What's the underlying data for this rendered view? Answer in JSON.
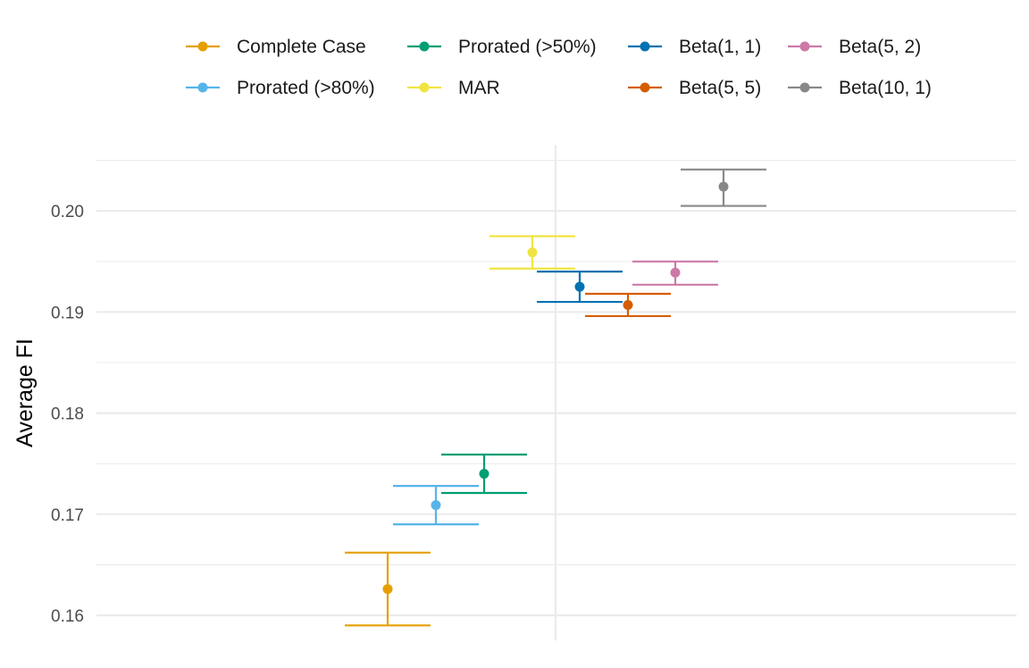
{
  "chart_data": {
    "type": "scatter",
    "title": "",
    "xlabel": "",
    "ylabel": "Average FI",
    "ylim": [
      0.1575,
      0.2065
    ],
    "y_ticks": [
      0.16,
      0.17,
      0.18,
      0.19,
      0.2
    ],
    "y_tick_labels": [
      "0.16",
      "0.17",
      "0.18",
      "0.19",
      "0.20"
    ],
    "grid": true,
    "legend_position": "top",
    "series": [
      {
        "name": "Complete Case",
        "color": "#E69F00",
        "estimate": 0.1626,
        "lower": 0.159,
        "upper": 0.1662
      },
      {
        "name": "Prorated (>80%)",
        "color": "#56B4E9",
        "estimate": 0.1709,
        "lower": 0.169,
        "upper": 0.1728
      },
      {
        "name": "Prorated (>50%)",
        "color": "#009E73",
        "estimate": 0.174,
        "lower": 0.1721,
        "upper": 0.1759
      },
      {
        "name": "MAR",
        "color": "#F0E442",
        "estimate": 0.1959,
        "lower": 0.1943,
        "upper": 0.1975
      },
      {
        "name": "Beta(1, 1)",
        "color": "#0072B2",
        "estimate": 0.1925,
        "lower": 0.191,
        "upper": 0.194
      },
      {
        "name": "Beta(5, 5)",
        "color": "#D55E00",
        "estimate": 0.1907,
        "lower": 0.1896,
        "upper": 0.1918
      },
      {
        "name": "Beta(5, 2)",
        "color": "#CC79A7",
        "estimate": 0.1939,
        "lower": 0.1927,
        "upper": 0.195
      },
      {
        "name": "Beta(10, 1)",
        "color": "#888888",
        "estimate": 0.2024,
        "lower": 0.2005,
        "upper": 0.2041
      }
    ],
    "legend_order": [
      "Complete Case",
      "Prorated (>50%)",
      "Beta(1, 1)",
      "Beta(5, 2)",
      "Prorated (>80%)",
      "MAR",
      "Beta(5, 5)",
      "Beta(10, 1)"
    ]
  }
}
